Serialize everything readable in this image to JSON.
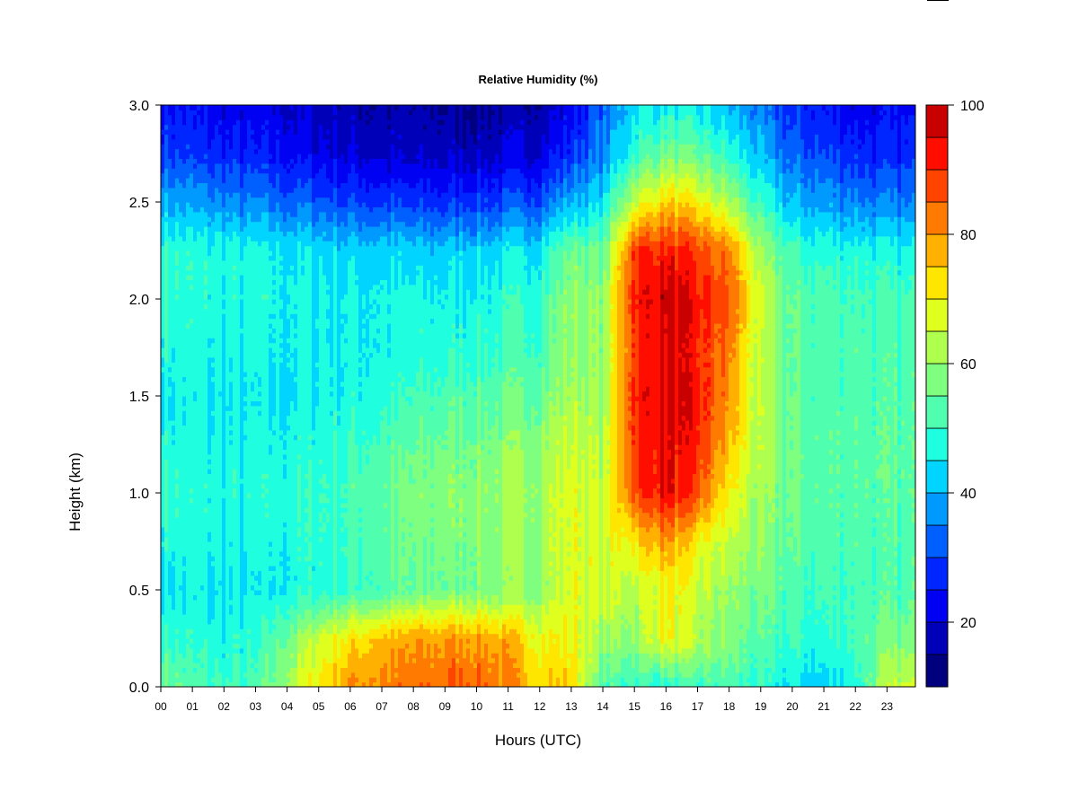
{
  "chart_data": {
    "type": "heatmap",
    "title": "Relative Humidity (%)",
    "xlabel": "Hours (UTC)",
    "ylabel": "Height (km)",
    "xlim": [
      0,
      23.9
    ],
    "ylim": [
      0.0,
      3.0
    ],
    "x_ticks": [
      "00",
      "01",
      "02",
      "03",
      "04",
      "05",
      "06",
      "07",
      "08",
      "09",
      "10",
      "11",
      "12",
      "13",
      "14",
      "15",
      "16",
      "17",
      "18",
      "19",
      "20",
      "21",
      "22",
      "23"
    ],
    "y_ticks": [
      "0.0",
      "0.5",
      "1.0",
      "1.5",
      "2.0",
      "2.5",
      "3.0"
    ],
    "colorbar": {
      "range": [
        10,
        100
      ],
      "levels": [
        10,
        15,
        20,
        25,
        30,
        35,
        40,
        45,
        50,
        55,
        60,
        65,
        70,
        75,
        80,
        85,
        90,
        95,
        100
      ],
      "ticks": [
        "20",
        "40",
        "60",
        "80",
        "100"
      ],
      "colors": [
        "#00007F",
        "#0000B8",
        "#0000F2",
        "#0026FF",
        "#0060FF",
        "#009AFF",
        "#00D4FF",
        "#1FFFDF",
        "#4FFFAF",
        "#7FFF7F",
        "#AFFF4F",
        "#DFFF1F",
        "#FFE600",
        "#FFB000",
        "#FF7A00",
        "#FF4400",
        "#FF0E00",
        "#C80000",
        "#7F0000"
      ]
    },
    "grid": false,
    "description_hours": [
      0,
      1,
      2,
      3,
      4,
      5,
      6,
      7,
      8,
      9,
      10,
      11,
      12,
      13,
      14,
      15,
      16,
      17,
      18,
      19,
      20,
      21,
      22,
      23
    ],
    "description_heights_km": [
      0.0,
      0.25,
      0.5,
      0.75,
      1.0,
      1.25,
      1.5,
      1.75,
      2.0,
      2.25,
      2.5,
      2.75,
      3.0
    ],
    "values": [
      [
        58,
        50,
        45,
        48,
        50,
        48,
        46,
        48,
        50,
        50,
        40,
        30,
        25
      ],
      [
        52,
        48,
        45,
        47,
        48,
        47,
        45,
        47,
        48,
        48,
        38,
        28,
        24
      ],
      [
        50,
        47,
        44,
        46,
        47,
        46,
        44,
        46,
        47,
        47,
        36,
        26,
        22
      ],
      [
        50,
        48,
        44,
        46,
        47,
        46,
        44,
        46,
        47,
        46,
        35,
        25,
        21
      ],
      [
        62,
        56,
        46,
        47,
        48,
        47,
        45,
        46,
        46,
        45,
        33,
        24,
        20
      ],
      [
        72,
        66,
        48,
        49,
        50,
        48,
        46,
        46,
        46,
        44,
        32,
        22,
        18
      ],
      [
        80,
        72,
        50,
        51,
        52,
        50,
        47,
        46,
        46,
        43,
        30,
        20,
        16
      ],
      [
        82,
        76,
        52,
        53,
        54,
        52,
        48,
        46,
        46,
        43,
        29,
        19,
        15
      ],
      [
        83,
        78,
        54,
        55,
        56,
        54,
        50,
        47,
        46,
        42,
        28,
        18,
        15
      ],
      [
        85,
        80,
        56,
        57,
        58,
        56,
        52,
        48,
        46,
        42,
        28,
        18,
        15
      ],
      [
        86,
        80,
        57,
        58,
        59,
        57,
        53,
        49,
        47,
        43,
        29,
        18,
        15
      ],
      [
        82,
        76,
        58,
        59,
        60,
        58,
        54,
        50,
        48,
        44,
        30,
        19,
        16
      ],
      [
        75,
        70,
        60,
        61,
        62,
        60,
        56,
        52,
        50,
        46,
        32,
        21,
        17
      ],
      [
        74,
        70,
        68,
        68,
        68,
        66,
        62,
        60,
        60,
        56,
        40,
        28,
        22
      ],
      [
        52,
        60,
        66,
        66,
        64,
        62,
        60,
        58,
        58,
        54,
        44,
        36,
        32
      ],
      [
        50,
        60,
        64,
        72,
        88,
        90,
        92,
        90,
        92,
        90,
        66,
        50,
        44
      ],
      [
        48,
        70,
        70,
        80,
        94,
        95,
        96,
        96,
        98,
        92,
        74,
        56,
        46
      ],
      [
        50,
        62,
        64,
        70,
        86,
        90,
        92,
        90,
        92,
        88,
        70,
        54,
        44
      ],
      [
        52,
        58,
        60,
        64,
        70,
        76,
        80,
        82,
        86,
        82,
        62,
        48,
        40
      ],
      [
        48,
        52,
        56,
        58,
        60,
        62,
        62,
        62,
        64,
        60,
        48,
        40,
        34
      ],
      [
        44,
        50,
        52,
        54,
        55,
        55,
        54,
        54,
        54,
        50,
        40,
        32,
        28
      ],
      [
        42,
        48,
        50,
        52,
        53,
        53,
        52,
        52,
        52,
        48,
        38,
        30,
        25
      ],
      [
        48,
        52,
        52,
        53,
        54,
        54,
        53,
        53,
        52,
        48,
        36,
        28,
        22
      ],
      [
        64,
        56,
        52,
        52,
        53,
        53,
        52,
        52,
        50,
        46,
        34,
        26,
        22
      ]
    ]
  }
}
